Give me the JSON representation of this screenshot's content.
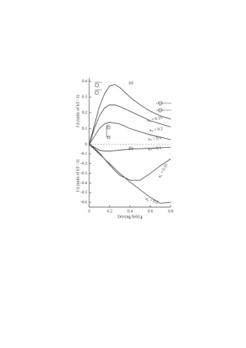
{
  "chart_data": [
    {
      "type": "line",
      "panel": "(a)",
      "ylabel": "f/Δ (units of kT / ℓ)",
      "x": [
        0,
        0.05,
        0.1,
        0.15,
        0.2,
        0.25,
        0.3,
        0.4,
        0.5,
        0.6,
        0.7,
        0.8
      ],
      "series": [
        {
          "name": "n₀ = 0.15",
          "color": "#222",
          "values": [
            0,
            0.12,
            0.24,
            0.32,
            0.37,
            0.38,
            0.36,
            0.3,
            0.25,
            0.21,
            0.18,
            0.16
          ]
        },
        {
          "name": "n₀ = 0.2",
          "color": "#222",
          "values": [
            0,
            0.1,
            0.18,
            0.23,
            0.25,
            0.25,
            0.24,
            0.21,
            0.18,
            0.15,
            0.13,
            0.11
          ]
        },
        {
          "name": "n₀ = 0.1",
          "color": "#222",
          "values": [
            0,
            0.05,
            0.1,
            0.13,
            0.14,
            0.135,
            0.13,
            0.1,
            0.08,
            0.06,
            0.045,
            0.03
          ]
        }
      ],
      "xlim": [
        0,
        0.8
      ],
      "ylim": [
        0,
        0.42
      ],
      "yticks": [
        0,
        0.1,
        0.2,
        0.3,
        0.4
      ]
    },
    {
      "type": "line",
      "panel": "(b)",
      "ylabel": "f/Δ (units of kT / ℓ)",
      "xlabel": "Driving field g",
      "x": [
        0,
        0.05,
        0.1,
        0.15,
        0.2,
        0.25,
        0.3,
        0.4,
        0.5,
        0.6,
        0.7,
        0.8
      ],
      "series": [
        {
          "name": "n₀ = 0.1",
          "color": "#222",
          "values": [
            0,
            -0.03,
            -0.06,
            -0.07,
            -0.07,
            -0.065,
            -0.06,
            -0.05,
            -0.045,
            -0.04,
            -0.035,
            -0.03
          ]
        },
        {
          "name": "n₀ = 0.15",
          "color": "#222",
          "values": [
            0,
            -0.04,
            -0.09,
            -0.15,
            -0.21,
            -0.27,
            -0.32,
            -0.37,
            -0.37,
            -0.3,
            -0.22,
            -0.15
          ]
        },
        {
          "name": "n₀ = 0.2",
          "color": "#222",
          "values": [
            0,
            -0.05,
            -0.1,
            -0.15,
            -0.2,
            -0.25,
            -0.3,
            -0.39,
            -0.47,
            -0.55,
            -0.61,
            -0.6
          ]
        }
      ],
      "xlim": [
        0,
        0.8
      ],
      "ylim": [
        -0.65,
        0
      ],
      "yticks": [
        -0.6,
        -0.5,
        -0.4,
        -0.3,
        -0.2,
        -0.1
      ],
      "xticks": [
        0,
        0.2,
        0.4,
        0.6,
        0.8
      ]
    }
  ]
}
